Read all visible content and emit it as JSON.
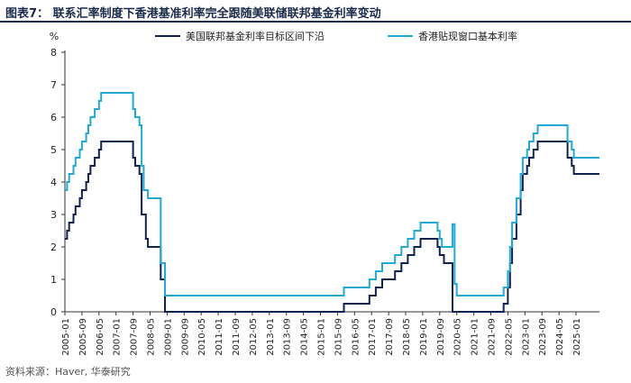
{
  "figure": {
    "title": "图表7： 联系汇率制度下香港基准利率完全跟随美联储联邦基金利率变动",
    "source": "资料来源：Haver, 华泰研究"
  },
  "colors": {
    "us_series": "#0f2350",
    "hk_series": "#22a9d6",
    "axis": "#333333",
    "title_rule": "#1a2a4a"
  },
  "chart_data": {
    "type": "line",
    "unit_label": "%",
    "ylim": [
      0,
      8
    ],
    "yticks": [
      0,
      1,
      2,
      3,
      4,
      5,
      6,
      7,
      8
    ],
    "xlim": [
      "2005-01",
      "2025-12"
    ],
    "xticks": [
      "2005-01",
      "2005-09",
      "2006-05",
      "2007-01",
      "2007-09",
      "2008-05",
      "2009-01",
      "2009-09",
      "2010-05",
      "2011-01",
      "2011-09",
      "2012-05",
      "2013-01",
      "2013-09",
      "2014-05",
      "2015-01",
      "2015-09",
      "2016-05",
      "2017-01",
      "2017-09",
      "2018-05",
      "2019-01",
      "2019-09",
      "2020-05",
      "2021-01",
      "2021-09",
      "2022-05",
      "2023-01",
      "2023-09",
      "2024-05",
      "2025-01"
    ],
    "legend_position": "top",
    "grid": false,
    "series": [
      {
        "name": "美国联邦基金利率目标区间下沿",
        "color": "#0f2350",
        "points": [
          [
            "2005-01",
            2.25
          ],
          [
            "2005-02",
            2.5
          ],
          [
            "2005-03",
            2.75
          ],
          [
            "2005-05",
            3.0
          ],
          [
            "2005-06",
            3.25
          ],
          [
            "2005-08",
            3.5
          ],
          [
            "2005-09",
            3.75
          ],
          [
            "2005-11",
            4.0
          ],
          [
            "2005-12",
            4.25
          ],
          [
            "2006-01",
            4.5
          ],
          [
            "2006-03",
            4.75
          ],
          [
            "2006-05",
            5.0
          ],
          [
            "2006-06",
            5.25
          ],
          [
            "2007-09",
            4.75
          ],
          [
            "2007-10",
            4.5
          ],
          [
            "2007-12",
            4.25
          ],
          [
            "2008-01",
            3.0
          ],
          [
            "2008-03",
            2.25
          ],
          [
            "2008-04",
            2.0
          ],
          [
            "2008-10",
            1.0
          ],
          [
            "2008-12",
            0.0
          ],
          [
            "2015-12",
            0.25
          ],
          [
            "2016-12",
            0.5
          ],
          [
            "2017-03",
            0.75
          ],
          [
            "2017-06",
            1.0
          ],
          [
            "2017-12",
            1.25
          ],
          [
            "2018-03",
            1.5
          ],
          [
            "2018-06",
            1.75
          ],
          [
            "2018-09",
            2.0
          ],
          [
            "2018-12",
            2.25
          ],
          [
            "2019-08",
            2.0
          ],
          [
            "2019-09",
            1.75
          ],
          [
            "2019-11",
            1.5
          ],
          [
            "2020-03",
            0.0
          ],
          [
            "2022-03",
            0.25
          ],
          [
            "2022-05",
            0.75
          ],
          [
            "2022-06",
            1.5
          ],
          [
            "2022-07",
            2.25
          ],
          [
            "2022-09",
            3.0
          ],
          [
            "2022-11",
            3.75
          ],
          [
            "2022-12",
            4.25
          ],
          [
            "2023-02",
            4.5
          ],
          [
            "2023-03",
            4.75
          ],
          [
            "2023-05",
            5.0
          ],
          [
            "2023-07",
            5.25
          ],
          [
            "2024-09",
            4.75
          ],
          [
            "2024-11",
            4.5
          ],
          [
            "2024-12",
            4.25
          ],
          [
            "2025-12",
            4.25
          ]
        ]
      },
      {
        "name": "香港贴现窗口基本利率",
        "color": "#22a9d6",
        "points": [
          [
            "2005-01",
            3.75
          ],
          [
            "2005-02",
            4.0
          ],
          [
            "2005-03",
            4.25
          ],
          [
            "2005-05",
            4.5
          ],
          [
            "2005-06",
            4.75
          ],
          [
            "2005-08",
            5.0
          ],
          [
            "2005-09",
            5.25
          ],
          [
            "2005-11",
            5.5
          ],
          [
            "2005-12",
            5.75
          ],
          [
            "2006-01",
            6.0
          ],
          [
            "2006-03",
            6.25
          ],
          [
            "2006-05",
            6.5
          ],
          [
            "2006-06",
            6.75
          ],
          [
            "2007-09",
            6.25
          ],
          [
            "2007-10",
            6.0
          ],
          [
            "2007-12",
            5.75
          ],
          [
            "2008-01",
            4.5
          ],
          [
            "2008-02",
            3.75
          ],
          [
            "2008-04",
            3.5
          ],
          [
            "2008-10",
            1.5
          ],
          [
            "2008-12",
            0.5
          ],
          [
            "2015-12",
            0.75
          ],
          [
            "2016-12",
            1.0
          ],
          [
            "2017-03",
            1.25
          ],
          [
            "2017-06",
            1.5
          ],
          [
            "2017-12",
            1.75
          ],
          [
            "2018-03",
            2.0
          ],
          [
            "2018-06",
            2.25
          ],
          [
            "2018-09",
            2.5
          ],
          [
            "2018-12",
            2.75
          ],
          [
            "2019-08",
            2.5
          ],
          [
            "2019-09",
            2.25
          ],
          [
            "2019-10",
            2.0
          ],
          [
            "2019-11",
            2.0
          ],
          [
            "2020-02",
            2.0
          ],
          [
            "2020-03",
            2.7
          ],
          [
            "2020-04",
            0.86
          ],
          [
            "2020-05",
            0.5
          ],
          [
            "2022-03",
            0.75
          ],
          [
            "2022-05",
            1.25
          ],
          [
            "2022-06",
            2.0
          ],
          [
            "2022-07",
            2.75
          ],
          [
            "2022-09",
            3.5
          ],
          [
            "2022-11",
            4.25
          ],
          [
            "2022-12",
            4.75
          ],
          [
            "2023-02",
            5.0
          ],
          [
            "2023-03",
            5.25
          ],
          [
            "2023-05",
            5.5
          ],
          [
            "2023-07",
            5.75
          ],
          [
            "2024-09",
            5.25
          ],
          [
            "2024-11",
            5.0
          ],
          [
            "2024-12",
            4.75
          ],
          [
            "2025-12",
            4.75
          ]
        ]
      }
    ]
  }
}
